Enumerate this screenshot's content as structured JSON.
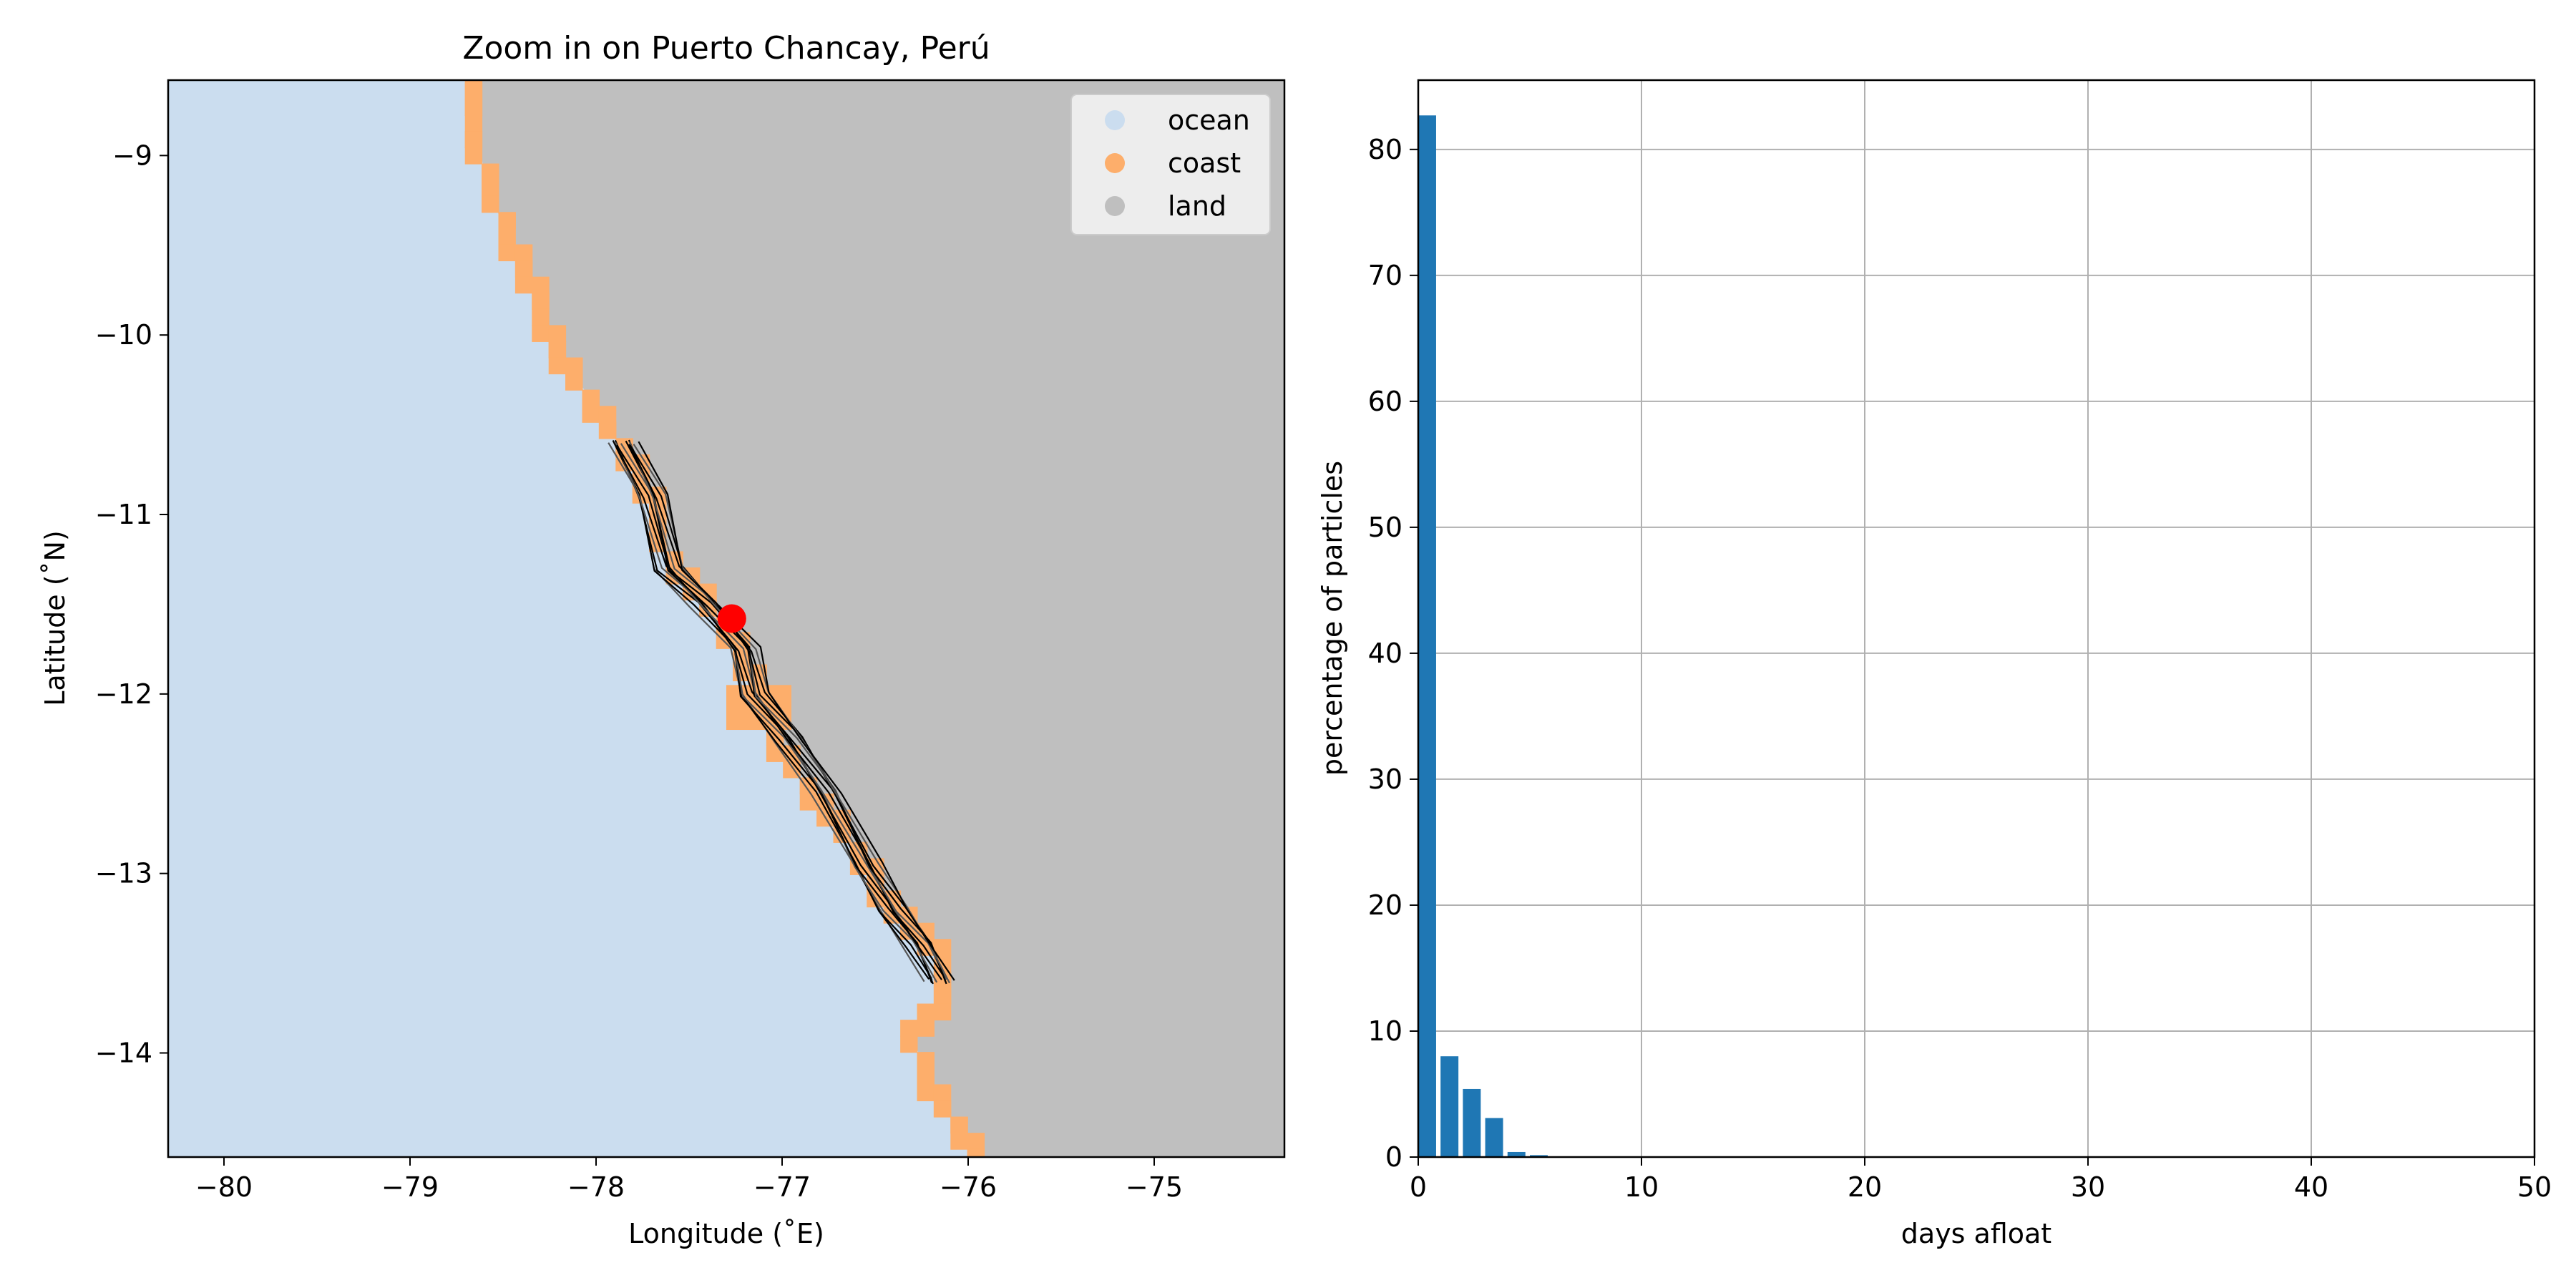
{
  "chart_data": [
    {
      "type": "map",
      "title": "Zoom in on Puerto Chancay, Perú",
      "xlabel": "Longitude (˚E)",
      "ylabel": "Latitude (˚N)",
      "xlim": [
        -80.3,
        -74.3
      ],
      "ylim": [
        -14.58,
        -8.58
      ],
      "xticks": [
        -80,
        -79,
        -78,
        -77,
        -76,
        -75
      ],
      "xtick_labels": [
        "−80",
        "−79",
        "−78",
        "−77",
        "−76",
        "−75"
      ],
      "yticks": [
        -9,
        -10,
        -11,
        -12,
        -13,
        -14
      ],
      "ytick_labels": [
        "−9",
        "−10",
        "−11",
        "−12",
        "−13",
        "−14"
      ],
      "grid": false,
      "legend": {
        "position": "top-right",
        "entries": [
          {
            "label": "ocean",
            "color": "#cbddef"
          },
          {
            "label": "coast",
            "color": "#fdae6b"
          },
          {
            "label": "land",
            "color": "#bfbfbf"
          }
        ]
      },
      "release_point": {
        "lon": -77.27,
        "lat": -11.58,
        "color": "#ff0000"
      },
      "coastline": [
        [
          -78.7,
          -8.5
        ],
        [
          -78.6,
          -9.1
        ],
        [
          -78.5,
          -9.4
        ],
        [
          -78.35,
          -9.7
        ],
        [
          -78.2,
          -10.1
        ],
        [
          -78.0,
          -10.4
        ],
        [
          -77.85,
          -10.65
        ],
        [
          -77.7,
          -10.9
        ],
        [
          -77.6,
          -11.3
        ],
        [
          -77.4,
          -11.5
        ],
        [
          -77.2,
          -11.8
        ],
        [
          -77.0,
          -12.3
        ],
        [
          -76.8,
          -12.6
        ],
        [
          -76.6,
          -12.9
        ],
        [
          -76.4,
          -13.2
        ],
        [
          -76.2,
          -13.4
        ],
        [
          -76.1,
          -13.65
        ],
        [
          -76.3,
          -13.9
        ],
        [
          -76.2,
          -14.2
        ],
        [
          -76.0,
          -14.5
        ],
        [
          -75.9,
          -14.7
        ]
      ],
      "island": {
        "lon_min": -77.3,
        "lon_max": -76.95,
        "lat_min": -12.2,
        "lat_max": -11.95
      },
      "trajectory_band": [
        [
          -77.85,
          -10.6
        ],
        [
          -77.7,
          -10.9
        ],
        [
          -77.6,
          -11.3
        ],
        [
          -77.4,
          -11.5
        ],
        [
          -77.2,
          -11.75
        ],
        [
          -77.15,
          -12.0
        ],
        [
          -76.95,
          -12.25
        ],
        [
          -76.75,
          -12.55
        ],
        [
          -76.55,
          -12.95
        ],
        [
          -76.4,
          -13.2
        ],
        [
          -76.25,
          -13.4
        ],
        [
          -76.15,
          -13.6
        ]
      ]
    },
    {
      "type": "bar",
      "xlabel": "days afloat",
      "ylabel": "percentage of particles",
      "xlim": [
        0,
        50
      ],
      "ylim": [
        0,
        85.5
      ],
      "xticks": [
        0,
        10,
        20,
        30,
        40,
        50
      ],
      "yticks": [
        0,
        10,
        20,
        30,
        40,
        50,
        60,
        70,
        80
      ],
      "grid": true,
      "bar_color": "#1f77b4",
      "bar_width": 0.8,
      "x": [
        0,
        1,
        2,
        3,
        4,
        5,
        6
      ],
      "values": [
        82.7,
        8.0,
        5.4,
        3.1,
        0.4,
        0.15,
        0.05
      ]
    }
  ]
}
